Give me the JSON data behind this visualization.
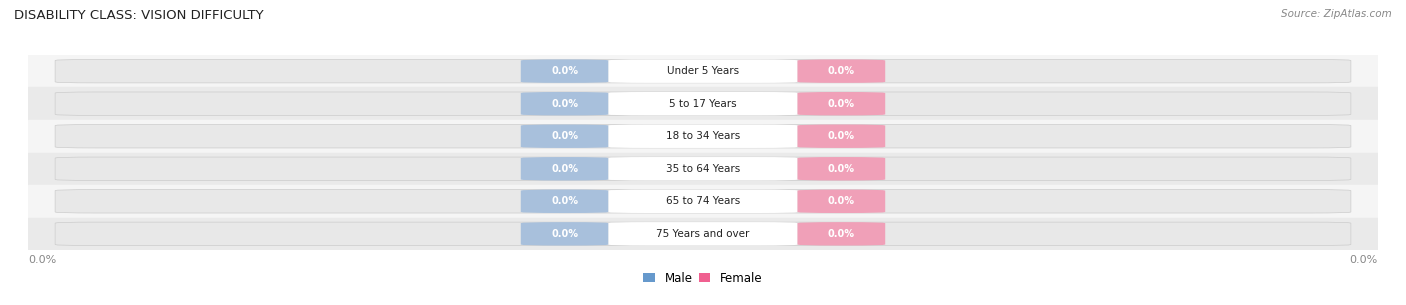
{
  "title": "DISABILITY CLASS: VISION DIFFICULTY",
  "source": "Source: ZipAtlas.com",
  "categories": [
    "Under 5 Years",
    "5 to 17 Years",
    "18 to 34 Years",
    "35 to 64 Years",
    "65 to 74 Years",
    "75 Years and over"
  ],
  "male_values": [
    0.0,
    0.0,
    0.0,
    0.0,
    0.0,
    0.0
  ],
  "female_values": [
    0.0,
    0.0,
    0.0,
    0.0,
    0.0,
    0.0
  ],
  "male_color": "#a8c0dc",
  "female_color": "#f0a0b8",
  "bar_track_color": "#dcdcdc",
  "row_colors": [
    "#f5f5f5",
    "#eaeaea"
  ],
  "title_color": "#222222",
  "source_color": "#888888",
  "label_text_color": "#ffffff",
  "category_text_color": "#222222",
  "legend_male_color": "#6699cc",
  "legend_female_color": "#f06090",
  "figsize": [
    14.06,
    3.05
  ],
  "dpi": 100
}
